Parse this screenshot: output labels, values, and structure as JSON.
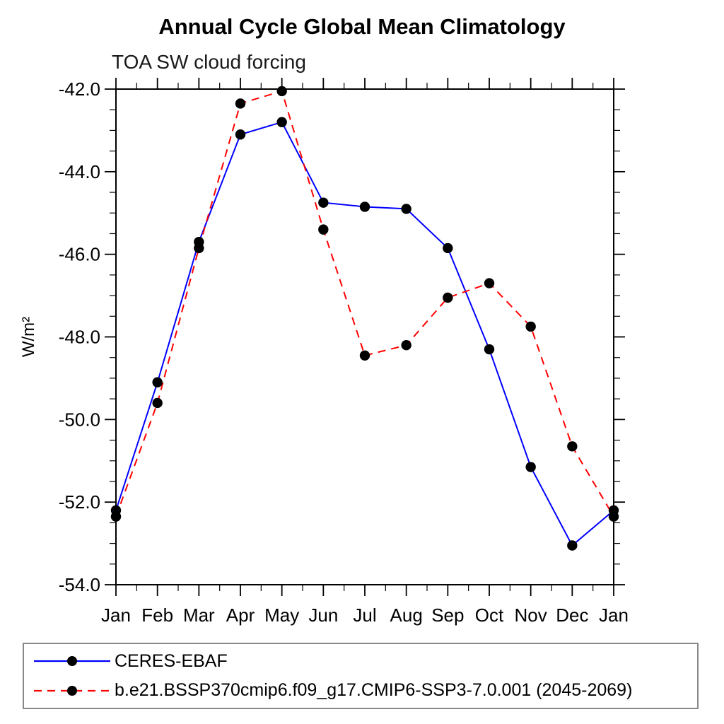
{
  "title": "Annual Cycle Global Mean Climatology",
  "subtitle": "TOA SW cloud forcing",
  "chart_data": {
    "type": "line",
    "x_categories": [
      "Jan",
      "Feb",
      "Mar",
      "Apr",
      "May",
      "Jun",
      "Jul",
      "Aug",
      "Sep",
      "Oct",
      "Nov",
      "Dec",
      "Jan"
    ],
    "ylabel": "W/m²",
    "ylim": [
      -54.0,
      -42.0
    ],
    "ytick_step": 2.0,
    "ytick_minor_step": 0.5,
    "ytick_labels": [
      "-42.0",
      "-44.0",
      "-46.0",
      "-48.0",
      "-50.0",
      "-52.0",
      "-54.0"
    ],
    "grid": "off",
    "legend_position": "bottom-left-box",
    "axis_color": "#000000",
    "series": [
      {
        "name": "CERES-EBAF",
        "color": "#0000ff",
        "line_style": "solid",
        "marker": "filled-circle",
        "marker_color": "#000000",
        "values": [
          -52.2,
          -49.1,
          -45.7,
          -43.1,
          -42.8,
          -44.75,
          -44.85,
          -44.9,
          -45.85,
          -48.3,
          -51.15,
          -53.05,
          -52.2
        ]
      },
      {
        "name": "b.e21.BSSP370cmip6.f09_g17.CMIP6-SSP3-7.0.001 (2045-2069)",
        "color": "#ff0000",
        "line_style": "dashed",
        "marker": "filled-circle",
        "marker_color": "#000000",
        "values": [
          -52.35,
          -49.6,
          -45.85,
          -42.35,
          -42.05,
          -45.4,
          -48.45,
          -48.2,
          -47.05,
          -46.7,
          -47.75,
          -50.65,
          -52.35
        ]
      }
    ]
  }
}
